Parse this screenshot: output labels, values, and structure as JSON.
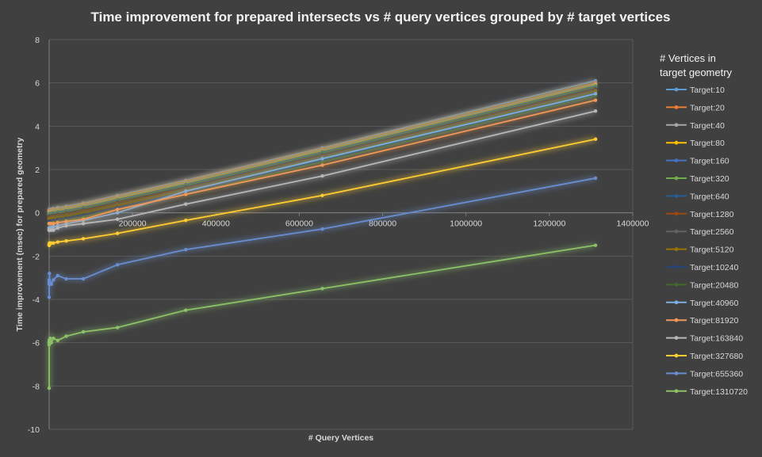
{
  "chart_data": {
    "type": "line",
    "title": "Time improvement for prepared intersects vs # query vertices grouped by # target vertices",
    "xlabel": "# Query Vertices",
    "ylabel": "Time improvement  (msec) for prepared  geometry",
    "xlim": [
      0,
      1400000
    ],
    "ylim": [
      -10,
      8
    ],
    "x_ticks": [
      200000,
      400000,
      600000,
      800000,
      1000000,
      1200000,
      1400000
    ],
    "y_ticks": [
      -10,
      -8,
      -6,
      -4,
      -2,
      0,
      2,
      4,
      6,
      8
    ],
    "x_tick_labels": [
      "200000",
      "400000",
      "600000",
      "800000",
      "1000000",
      "1200000",
      "1400000"
    ],
    "y_tick_labels": [
      "-10",
      "-8",
      "-6",
      "-4",
      "-2",
      "0",
      "2",
      "4",
      "6",
      "8"
    ],
    "grid": true,
    "legend_title": "# Vertices in target geometry",
    "legend_title_lines": [
      "# Vertices in",
      "target geometry"
    ],
    "legend_position": "right",
    "x": [
      10,
      20,
      40,
      80,
      160,
      320,
      640,
      1280,
      2560,
      5120,
      10240,
      20480,
      40960,
      81920,
      163840,
      327680,
      655360,
      1310720
    ],
    "series": [
      {
        "name": "Target:10",
        "color": "#5b9bd5",
        "values": [
          0.15,
          0.15,
          0.15,
          0.15,
          0.15,
          0.15,
          0.15,
          0.15,
          0.16,
          0.17,
          0.2,
          0.24,
          0.3,
          0.45,
          0.8,
          1.5,
          3.0,
          6.1
        ]
      },
      {
        "name": "Target:20",
        "color": "#ed7d31",
        "values": [
          0.1,
          0.1,
          0.1,
          0.1,
          0.1,
          0.1,
          0.1,
          0.1,
          0.11,
          0.12,
          0.15,
          0.19,
          0.25,
          0.4,
          0.75,
          1.45,
          2.95,
          6.0
        ]
      },
      {
        "name": "Target:40",
        "color": "#a5a5a5",
        "values": [
          0.05,
          0.05,
          0.05,
          0.05,
          0.05,
          0.05,
          0.05,
          0.05,
          0.06,
          0.07,
          0.1,
          0.14,
          0.2,
          0.35,
          0.7,
          1.4,
          2.9,
          5.95
        ]
      },
      {
        "name": "Target:80",
        "color": "#ffc000",
        "values": [
          0.0,
          0.0,
          0.0,
          0.0,
          0.0,
          0.0,
          0.0,
          0.0,
          0.01,
          0.02,
          0.05,
          0.09,
          0.15,
          0.3,
          0.65,
          1.35,
          2.85,
          5.9
        ]
      },
      {
        "name": "Target:160",
        "color": "#4472c4",
        "values": [
          -0.05,
          -0.05,
          -0.05,
          -0.05,
          -0.05,
          -0.05,
          -0.05,
          -0.05,
          -0.04,
          -0.03,
          0.0,
          0.04,
          0.1,
          0.25,
          0.6,
          1.3,
          2.8,
          5.85
        ]
      },
      {
        "name": "Target:320",
        "color": "#70ad47",
        "values": [
          -0.1,
          -0.1,
          -0.1,
          -0.1,
          -0.1,
          -0.1,
          -0.1,
          -0.1,
          -0.09,
          -0.08,
          -0.05,
          -0.01,
          0.05,
          0.2,
          0.55,
          1.25,
          2.75,
          5.8
        ]
      },
      {
        "name": "Target:640",
        "color": "#255e91",
        "values": [
          -0.15,
          -0.15,
          -0.15,
          -0.15,
          -0.15,
          -0.15,
          -0.15,
          -0.15,
          -0.14,
          -0.13,
          -0.1,
          -0.06,
          0.0,
          0.15,
          0.5,
          1.2,
          2.7,
          5.75
        ]
      },
      {
        "name": "Target:1280",
        "color": "#9e480e",
        "values": [
          -0.2,
          -0.2,
          -0.2,
          -0.2,
          -0.2,
          -0.2,
          -0.2,
          -0.2,
          -0.19,
          -0.18,
          -0.15,
          -0.11,
          -0.05,
          0.1,
          0.45,
          1.15,
          2.65,
          5.7
        ]
      },
      {
        "name": "Target:2560",
        "color": "#636363",
        "values": [
          -0.25,
          -0.25,
          -0.25,
          -0.25,
          -0.25,
          -0.25,
          -0.25,
          -0.25,
          -0.24,
          -0.23,
          -0.2,
          -0.16,
          -0.1,
          0.05,
          0.4,
          1.1,
          2.6,
          5.65
        ]
      },
      {
        "name": "Target:5120",
        "color": "#997300",
        "values": [
          -0.3,
          -0.3,
          -0.3,
          -0.3,
          -0.3,
          -0.3,
          -0.3,
          -0.3,
          -0.29,
          -0.28,
          -0.25,
          -0.21,
          -0.15,
          0.0,
          0.35,
          1.05,
          2.55,
          5.6
        ]
      },
      {
        "name": "Target:10240",
        "color": "#264478",
        "values": [
          -0.4,
          -0.4,
          -0.4,
          -0.4,
          -0.4,
          -0.4,
          -0.4,
          -0.4,
          -0.39,
          -0.38,
          -0.35,
          -0.31,
          -0.25,
          -0.1,
          0.25,
          0.95,
          2.45,
          5.5
        ]
      },
      {
        "name": "Target:20480",
        "color": "#43682b",
        "values": [
          -0.5,
          -0.5,
          -0.5,
          -0.5,
          -0.5,
          -0.5,
          -0.5,
          -0.5,
          -0.49,
          -0.48,
          -0.45,
          -0.41,
          -0.35,
          -0.2,
          0.15,
          0.85,
          2.35,
          5.4
        ]
      },
      {
        "name": "Target:40960",
        "color": "#7cafdd",
        "values": [
          -0.7,
          -0.7,
          -0.7,
          -0.7,
          -0.7,
          -0.7,
          -0.7,
          -0.7,
          -0.69,
          -0.68,
          -0.65,
          -0.6,
          -0.5,
          -0.35,
          0.0,
          1.0,
          2.5,
          5.5
        ]
      },
      {
        "name": "Target:81920",
        "color": "#f1975a",
        "values": [
          -0.5,
          -0.5,
          -0.5,
          -0.5,
          -0.5,
          -0.5,
          -0.5,
          -0.5,
          -0.5,
          -0.5,
          -0.5,
          -0.45,
          -0.4,
          -0.3,
          0.15,
          0.85,
          2.2,
          5.2
        ]
      },
      {
        "name": "Target:163840",
        "color": "#b7b7b7",
        "values": [
          -0.8,
          -0.8,
          -0.8,
          -0.8,
          -0.8,
          -0.8,
          -0.8,
          -0.8,
          -0.8,
          -0.8,
          -0.8,
          -0.7,
          -0.6,
          -0.5,
          -0.3,
          0.4,
          1.7,
          4.7
        ]
      },
      {
        "name": "Target:327680",
        "color": "#ffcd33",
        "values": [
          -1.5,
          -1.5,
          -1.5,
          -1.45,
          -1.5,
          -1.45,
          -1.4,
          -1.4,
          -1.4,
          -1.4,
          -1.4,
          -1.35,
          -1.3,
          -1.2,
          -0.95,
          -0.35,
          0.8,
          3.4
        ]
      },
      {
        "name": "Target:655360",
        "color": "#698ed0",
        "values": [
          -3.9,
          -3.1,
          -3.2,
          -3.3,
          -3.3,
          -3.2,
          -2.8,
          -3.2,
          -3.3,
          -3.3,
          -3.1,
          -2.9,
          -3.05,
          -3.05,
          -2.4,
          -1.7,
          -0.75,
          1.6
        ]
      },
      {
        "name": "Target:1310720",
        "color": "#8cc168",
        "values": [
          -8.1,
          -6.0,
          -6.1,
          -6.0,
          -6.0,
          -5.9,
          -5.95,
          -5.85,
          -5.8,
          -6.0,
          -5.8,
          -5.9,
          -5.7,
          -5.5,
          -5.3,
          -4.5,
          -3.5,
          -1.5
        ]
      }
    ]
  }
}
